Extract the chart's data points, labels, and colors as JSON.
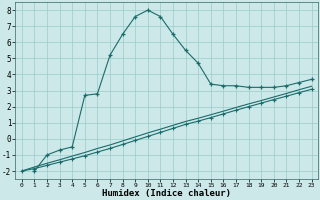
{
  "xlabel": "Humidex (Indice chaleur)",
  "bg_color": "#cce8e8",
  "line_color": "#1a6b6b",
  "xlim": [
    -0.5,
    23.5
  ],
  "ylim": [
    -2.5,
    8.5
  ],
  "xticks": [
    0,
    1,
    2,
    3,
    4,
    5,
    6,
    7,
    8,
    9,
    10,
    11,
    12,
    13,
    14,
    15,
    16,
    17,
    18,
    19,
    20,
    21,
    22,
    23
  ],
  "yticks": [
    -2,
    -1,
    0,
    1,
    2,
    3,
    4,
    5,
    6,
    7,
    8
  ],
  "series1_x": [
    1,
    2,
    3,
    4,
    5,
    6,
    7,
    8,
    9,
    10,
    11,
    12,
    13,
    14,
    15,
    16,
    17,
    18,
    19,
    20,
    21,
    22,
    23
  ],
  "series1_y": [
    -2,
    -1,
    -0.7,
    -0.5,
    2.7,
    2.8,
    5.2,
    6.5,
    7.6,
    8.0,
    7.6,
    6.5,
    5.5,
    4.7,
    3.4,
    3.3,
    3.3,
    3.2,
    3.2,
    3.2,
    3.3,
    3.5,
    3.7
  ],
  "series2_x": [
    0,
    1,
    2,
    3,
    4,
    5,
    6,
    7,
    8,
    9,
    10,
    11,
    12,
    13,
    14,
    15,
    16,
    17,
    18,
    19,
    20,
    21,
    22,
    23
  ],
  "series2_y": [
    -2.0,
    -1.85,
    -1.65,
    -1.45,
    -1.25,
    -1.05,
    -0.82,
    -0.6,
    -0.35,
    -0.1,
    0.15,
    0.4,
    0.65,
    0.9,
    1.1,
    1.32,
    1.55,
    1.78,
    2.0,
    2.22,
    2.44,
    2.65,
    2.87,
    3.08
  ],
  "series3_x": [
    0,
    1,
    2,
    3,
    4,
    5,
    6,
    7,
    8,
    9,
    10,
    11,
    12,
    13,
    14,
    15,
    16,
    17,
    18,
    19,
    20,
    21,
    22,
    23
  ],
  "series3_y": [
    -2.0,
    -1.75,
    -1.52,
    -1.3,
    -1.07,
    -0.85,
    -0.6,
    -0.38,
    -0.13,
    0.12,
    0.37,
    0.6,
    0.84,
    1.08,
    1.28,
    1.5,
    1.72,
    1.95,
    2.17,
    2.38,
    2.6,
    2.82,
    3.05,
    3.27
  ],
  "grid_color": "#99cccc",
  "grid_major_color": "#aabbbb"
}
